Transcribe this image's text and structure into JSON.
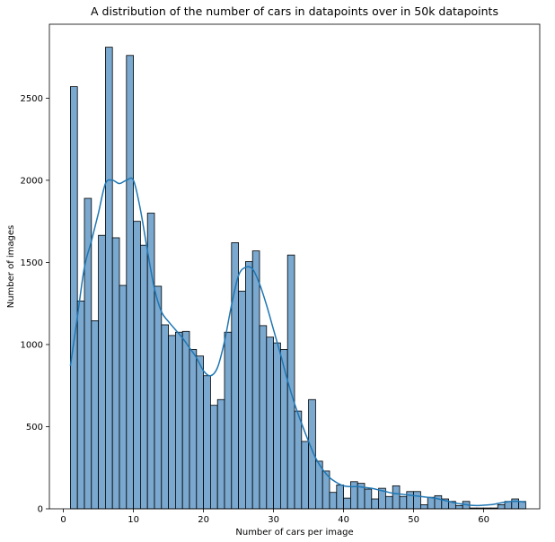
{
  "chart_data": {
    "type": "bar",
    "title": "A distribution of the number of cars in datapoints over in 50k datapoints",
    "xlabel": "Number of cars per image",
    "ylabel": "Number of images",
    "xlim": [
      -2,
      68
    ],
    "ylim": [
      0,
      2950
    ],
    "x_ticks": [
      0,
      10,
      20,
      30,
      40,
      50,
      60
    ],
    "y_ticks": [
      0,
      500,
      1000,
      1500,
      2000,
      2500
    ],
    "bin_width": 1,
    "bin_starts": [
      1,
      2,
      3,
      4,
      5,
      6,
      7,
      8,
      9,
      10,
      11,
      12,
      13,
      14,
      15,
      16,
      17,
      18,
      19,
      20,
      21,
      22,
      23,
      24,
      25,
      26,
      27,
      28,
      29,
      30,
      31,
      32,
      33,
      34,
      35,
      36,
      37,
      38,
      39,
      40,
      41,
      42,
      43,
      44,
      45,
      46,
      47,
      48,
      49,
      50,
      51,
      52,
      53,
      54,
      55,
      56,
      57,
      58,
      59,
      60,
      61,
      62,
      63,
      64,
      65
    ],
    "values": [
      2570,
      1265,
      1890,
      1145,
      1665,
      2810,
      1650,
      1360,
      2760,
      1750,
      1605,
      1800,
      1355,
      1120,
      1055,
      1075,
      1080,
      970,
      930,
      810,
      630,
      665,
      1075,
      1620,
      1325,
      1505,
      1570,
      1115,
      1045,
      1010,
      970,
      1545,
      595,
      410,
      665,
      290,
      230,
      100,
      145,
      65,
      165,
      155,
      120,
      60,
      125,
      75,
      140,
      75,
      105,
      105,
      25,
      70,
      80,
      60,
      45,
      20,
      45,
      5,
      5,
      5,
      5,
      25,
      45,
      60,
      45
    ],
    "kde": {
      "x": [
        1,
        2,
        3,
        4,
        5,
        6,
        7,
        8,
        9,
        10,
        11,
        12,
        13,
        14,
        15,
        16,
        17,
        18,
        19,
        20,
        21,
        22,
        23,
        24,
        25,
        26,
        27,
        28,
        29,
        30,
        31,
        32,
        33,
        34,
        35,
        36,
        37,
        38,
        39,
        40,
        41,
        42,
        43,
        44,
        45,
        46,
        47,
        48,
        49,
        50,
        51,
        52,
        53,
        54,
        55,
        56,
        57,
        58,
        59,
        60,
        61,
        62,
        63,
        64,
        65,
        66
      ],
      "y": [
        870,
        1170,
        1470,
        1630,
        1800,
        1980,
        2000,
        1980,
        2000,
        2000,
        1820,
        1570,
        1340,
        1200,
        1140,
        1090,
        1040,
        980,
        920,
        840,
        810,
        860,
        1020,
        1240,
        1420,
        1470,
        1460,
        1370,
        1240,
        1090,
        940,
        780,
        640,
        520,
        410,
        310,
        240,
        190,
        160,
        140,
        135,
        135,
        130,
        125,
        115,
        105,
        95,
        90,
        85,
        80,
        75,
        70,
        65,
        55,
        45,
        35,
        28,
        22,
        20,
        22,
        25,
        32,
        40,
        45,
        45,
        40
      ]
    },
    "bar_color": "#7aa8cf",
    "line_color": "#1f77b4",
    "grid": false,
    "legend": "none"
  }
}
